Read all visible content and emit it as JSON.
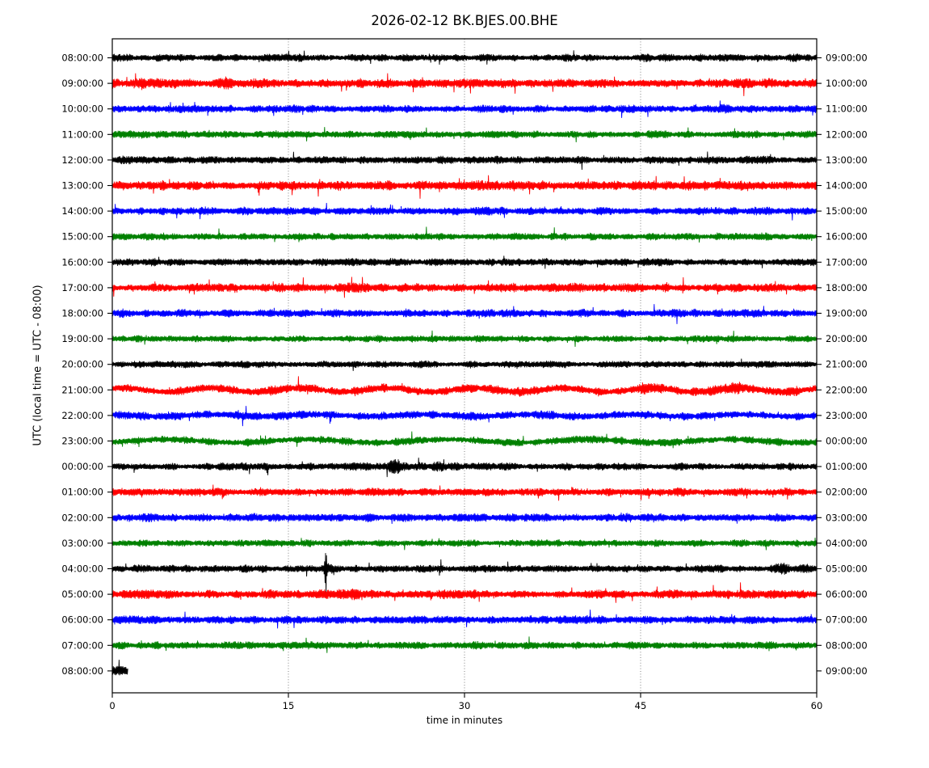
{
  "figure": {
    "title": "2026-02-12 BK.BJES.00.BHE",
    "xlabel": "time in minutes",
    "ylabel": "UTC (local time = UTC - 08:00)"
  },
  "chart_data": {
    "type": "line",
    "subtype": "seismogram-dayplot",
    "title": "2026-02-12 BK.BJES.00.BHE",
    "xlabel": "time in minutes",
    "ylabel": "UTC (local time = UTC - 08:00)",
    "x_range": [
      0,
      60
    ],
    "x_ticks": [
      0,
      15,
      30,
      45,
      60
    ],
    "x_tick_labels": [
      "0",
      "15",
      "30",
      "45",
      "60"
    ],
    "grid_minutes": [
      15,
      30,
      45
    ],
    "interval_minutes": 60,
    "colors": {
      "black": "#000000",
      "red": "#ff0000",
      "blue": "#0000ff",
      "green": "#008000"
    },
    "rows": [
      {
        "left": "08:00:00",
        "right": "09:00:00",
        "color": "black",
        "amp": 5.5,
        "dur": 60,
        "spike": 0.008,
        "events": [],
        "wobble": []
      },
      {
        "left": "09:00:00",
        "right": "10:00:00",
        "color": "red",
        "amp": 7.0,
        "dur": 60,
        "spike": 0.018,
        "events": [
          {
            "t": 2.6,
            "w": 0.18,
            "g": 1.9
          },
          {
            "t": 9.7,
            "w": 0.14,
            "g": 1.9
          }
        ],
        "wobble": []
      },
      {
        "left": "10:00:00",
        "right": "11:00:00",
        "color": "blue",
        "amp": 5.5,
        "dur": 60,
        "spike": 0.01,
        "events": [
          {
            "t": 51.5,
            "w": 1.6,
            "g": 1.25
          }
        ],
        "wobble": []
      },
      {
        "left": "11:00:00",
        "right": "12:00:00",
        "color": "green",
        "amp": 5.5,
        "dur": 60,
        "spike": 0.008,
        "events": [],
        "wobble": []
      },
      {
        "left": "12:00:00",
        "right": "13:00:00",
        "color": "black",
        "amp": 5.5,
        "dur": 60,
        "spike": 0.008,
        "events": [],
        "wobble": []
      },
      {
        "left": "13:00:00",
        "right": "14:00:00",
        "color": "red",
        "amp": 7.0,
        "dur": 60,
        "spike": 0.016,
        "events": [
          {
            "t": 33.0,
            "w": 1.5,
            "g": 1.2
          }
        ],
        "wobble": []
      },
      {
        "left": "14:00:00",
        "right": "15:00:00",
        "color": "blue",
        "amp": 6.0,
        "dur": 60,
        "spike": 0.01,
        "events": [],
        "wobble": []
      },
      {
        "left": "15:00:00",
        "right": "16:00:00",
        "color": "green",
        "amp": 5.5,
        "dur": 60,
        "spike": 0.008,
        "events": [],
        "wobble": []
      },
      {
        "left": "16:00:00",
        "right": "17:00:00",
        "color": "black",
        "amp": 5.5,
        "dur": 60,
        "spike": 0.008,
        "events": [],
        "wobble": []
      },
      {
        "left": "17:00:00",
        "right": "18:00:00",
        "color": "red",
        "amp": 6.5,
        "dur": 60,
        "spike": 0.014,
        "events": [],
        "wobble": []
      },
      {
        "left": "18:00:00",
        "right": "19:00:00",
        "color": "blue",
        "amp": 6.0,
        "dur": 60,
        "spike": 0.01,
        "events": [],
        "wobble": []
      },
      {
        "left": "19:00:00",
        "right": "20:00:00",
        "color": "green",
        "amp": 5.0,
        "dur": 60,
        "spike": 0.008,
        "events": [],
        "wobble": []
      },
      {
        "left": "20:00:00",
        "right": "21:00:00",
        "color": "black",
        "amp": 5.0,
        "dur": 60,
        "spike": 0.008,
        "events": [],
        "wobble": []
      },
      {
        "left": "21:00:00",
        "right": "22:00:00",
        "color": "red",
        "amp": 6.5,
        "dur": 60,
        "spike": 0.012,
        "events": [
          {
            "t": 45.5,
            "w": 0.6,
            "g": 1.5
          },
          {
            "t": 53.5,
            "w": 1.2,
            "g": 1.3
          }
        ],
        "wobble": [
          {
            "a": 2.4,
            "p": 7.5,
            "ph": 0.8
          }
        ]
      },
      {
        "left": "22:00:00",
        "right": "23:00:00",
        "color": "blue",
        "amp": 6.0,
        "dur": 60,
        "spike": 0.01,
        "events": [],
        "wobble": [
          {
            "a": 1.2,
            "p": 9.0,
            "ph": 2.0
          }
        ]
      },
      {
        "left": "23:00:00",
        "right": "00:00:00",
        "color": "green",
        "amp": 5.5,
        "dur": 60,
        "spike": 0.008,
        "events": [],
        "wobble": [
          {
            "a": 2.0,
            "p": 12.0,
            "ph": -0.8
          }
        ]
      },
      {
        "left": "00:00:00",
        "right": "01:00:00",
        "color": "black",
        "amp": 5.5,
        "dur": 60,
        "spike": 0.008,
        "events": [
          {
            "t": 24.2,
            "w": 0.35,
            "g": 2.6
          },
          {
            "t": 28.6,
            "w": 0.9,
            "g": 1.3
          }
        ],
        "wobble": []
      },
      {
        "left": "01:00:00",
        "right": "02:00:00",
        "color": "red",
        "amp": 6.0,
        "dur": 60,
        "spike": 0.014,
        "events": [],
        "wobble": []
      },
      {
        "left": "02:00:00",
        "right": "03:00:00",
        "color": "blue",
        "amp": 6.0,
        "dur": 60,
        "spike": 0.01,
        "events": [],
        "wobble": []
      },
      {
        "left": "03:00:00",
        "right": "04:00:00",
        "color": "green",
        "amp": 5.0,
        "dur": 60,
        "spike": 0.008,
        "events": [],
        "wobble": []
      },
      {
        "left": "04:00:00",
        "right": "05:00:00",
        "color": "black",
        "amp": 5.5,
        "dur": 60,
        "spike": 0.008,
        "events": [
          {
            "t": 18.2,
            "w": 0.06,
            "g": 7.0
          },
          {
            "t": 18.2,
            "w": 0.3,
            "g": 1.7
          },
          {
            "t": 57.6,
            "w": 0.9,
            "g": 1.5
          }
        ],
        "wobble": []
      },
      {
        "left": "05:00:00",
        "right": "06:00:00",
        "color": "red",
        "amp": 6.5,
        "dur": 60,
        "spike": 0.014,
        "events": [
          {
            "t": 21.0,
            "w": 0.9,
            "g": 1.3
          }
        ],
        "wobble": []
      },
      {
        "left": "06:00:00",
        "right": "07:00:00",
        "color": "blue",
        "amp": 6.0,
        "dur": 60,
        "spike": 0.01,
        "events": [],
        "wobble": []
      },
      {
        "left": "07:00:00",
        "right": "08:00:00",
        "color": "green",
        "amp": 5.5,
        "dur": 60,
        "spike": 0.008,
        "events": [],
        "wobble": []
      },
      {
        "left": "08:00:00",
        "right": "09:00:00",
        "color": "black",
        "amp": 7.0,
        "dur": 1.35,
        "spike": 0.02,
        "events": [],
        "wobble": []
      }
    ]
  }
}
